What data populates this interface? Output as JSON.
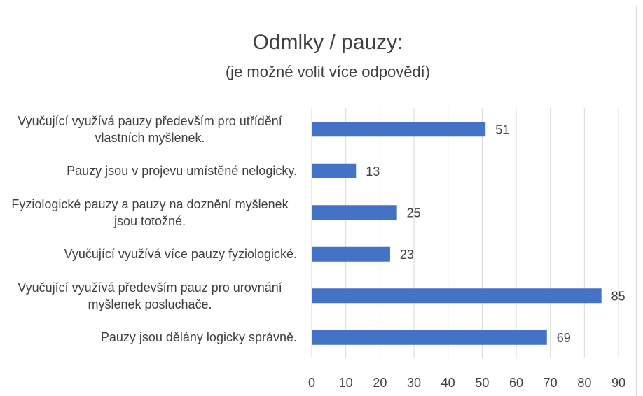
{
  "chart_data": {
    "type": "barh",
    "title": "Odmlky / pauzy:",
    "subtitle": "(je možné volit více odpovědí)",
    "categories": [
      "Vyučující využívá pauzy především pro utřídění vlastních myšlenek.",
      "Pauzy jsou v projevu umístěné nelogicky.",
      "Fyziologické pauzy a pauzy na doznění myšlenek jsou totožné.",
      "Vyučující využívá více pauzy fyziologické.",
      "Vyučující využívá především pauz pro urovnání myšlenek posluchače.",
      "Pauzy jsou dělány logicky správně."
    ],
    "values": [
      51,
      13,
      25,
      23,
      85,
      69
    ],
    "color": "#4472c4",
    "xlim": [
      0,
      90
    ],
    "xticks": [
      0,
      10,
      20,
      30,
      40,
      50,
      60,
      70,
      80,
      90
    ],
    "grid": true
  }
}
